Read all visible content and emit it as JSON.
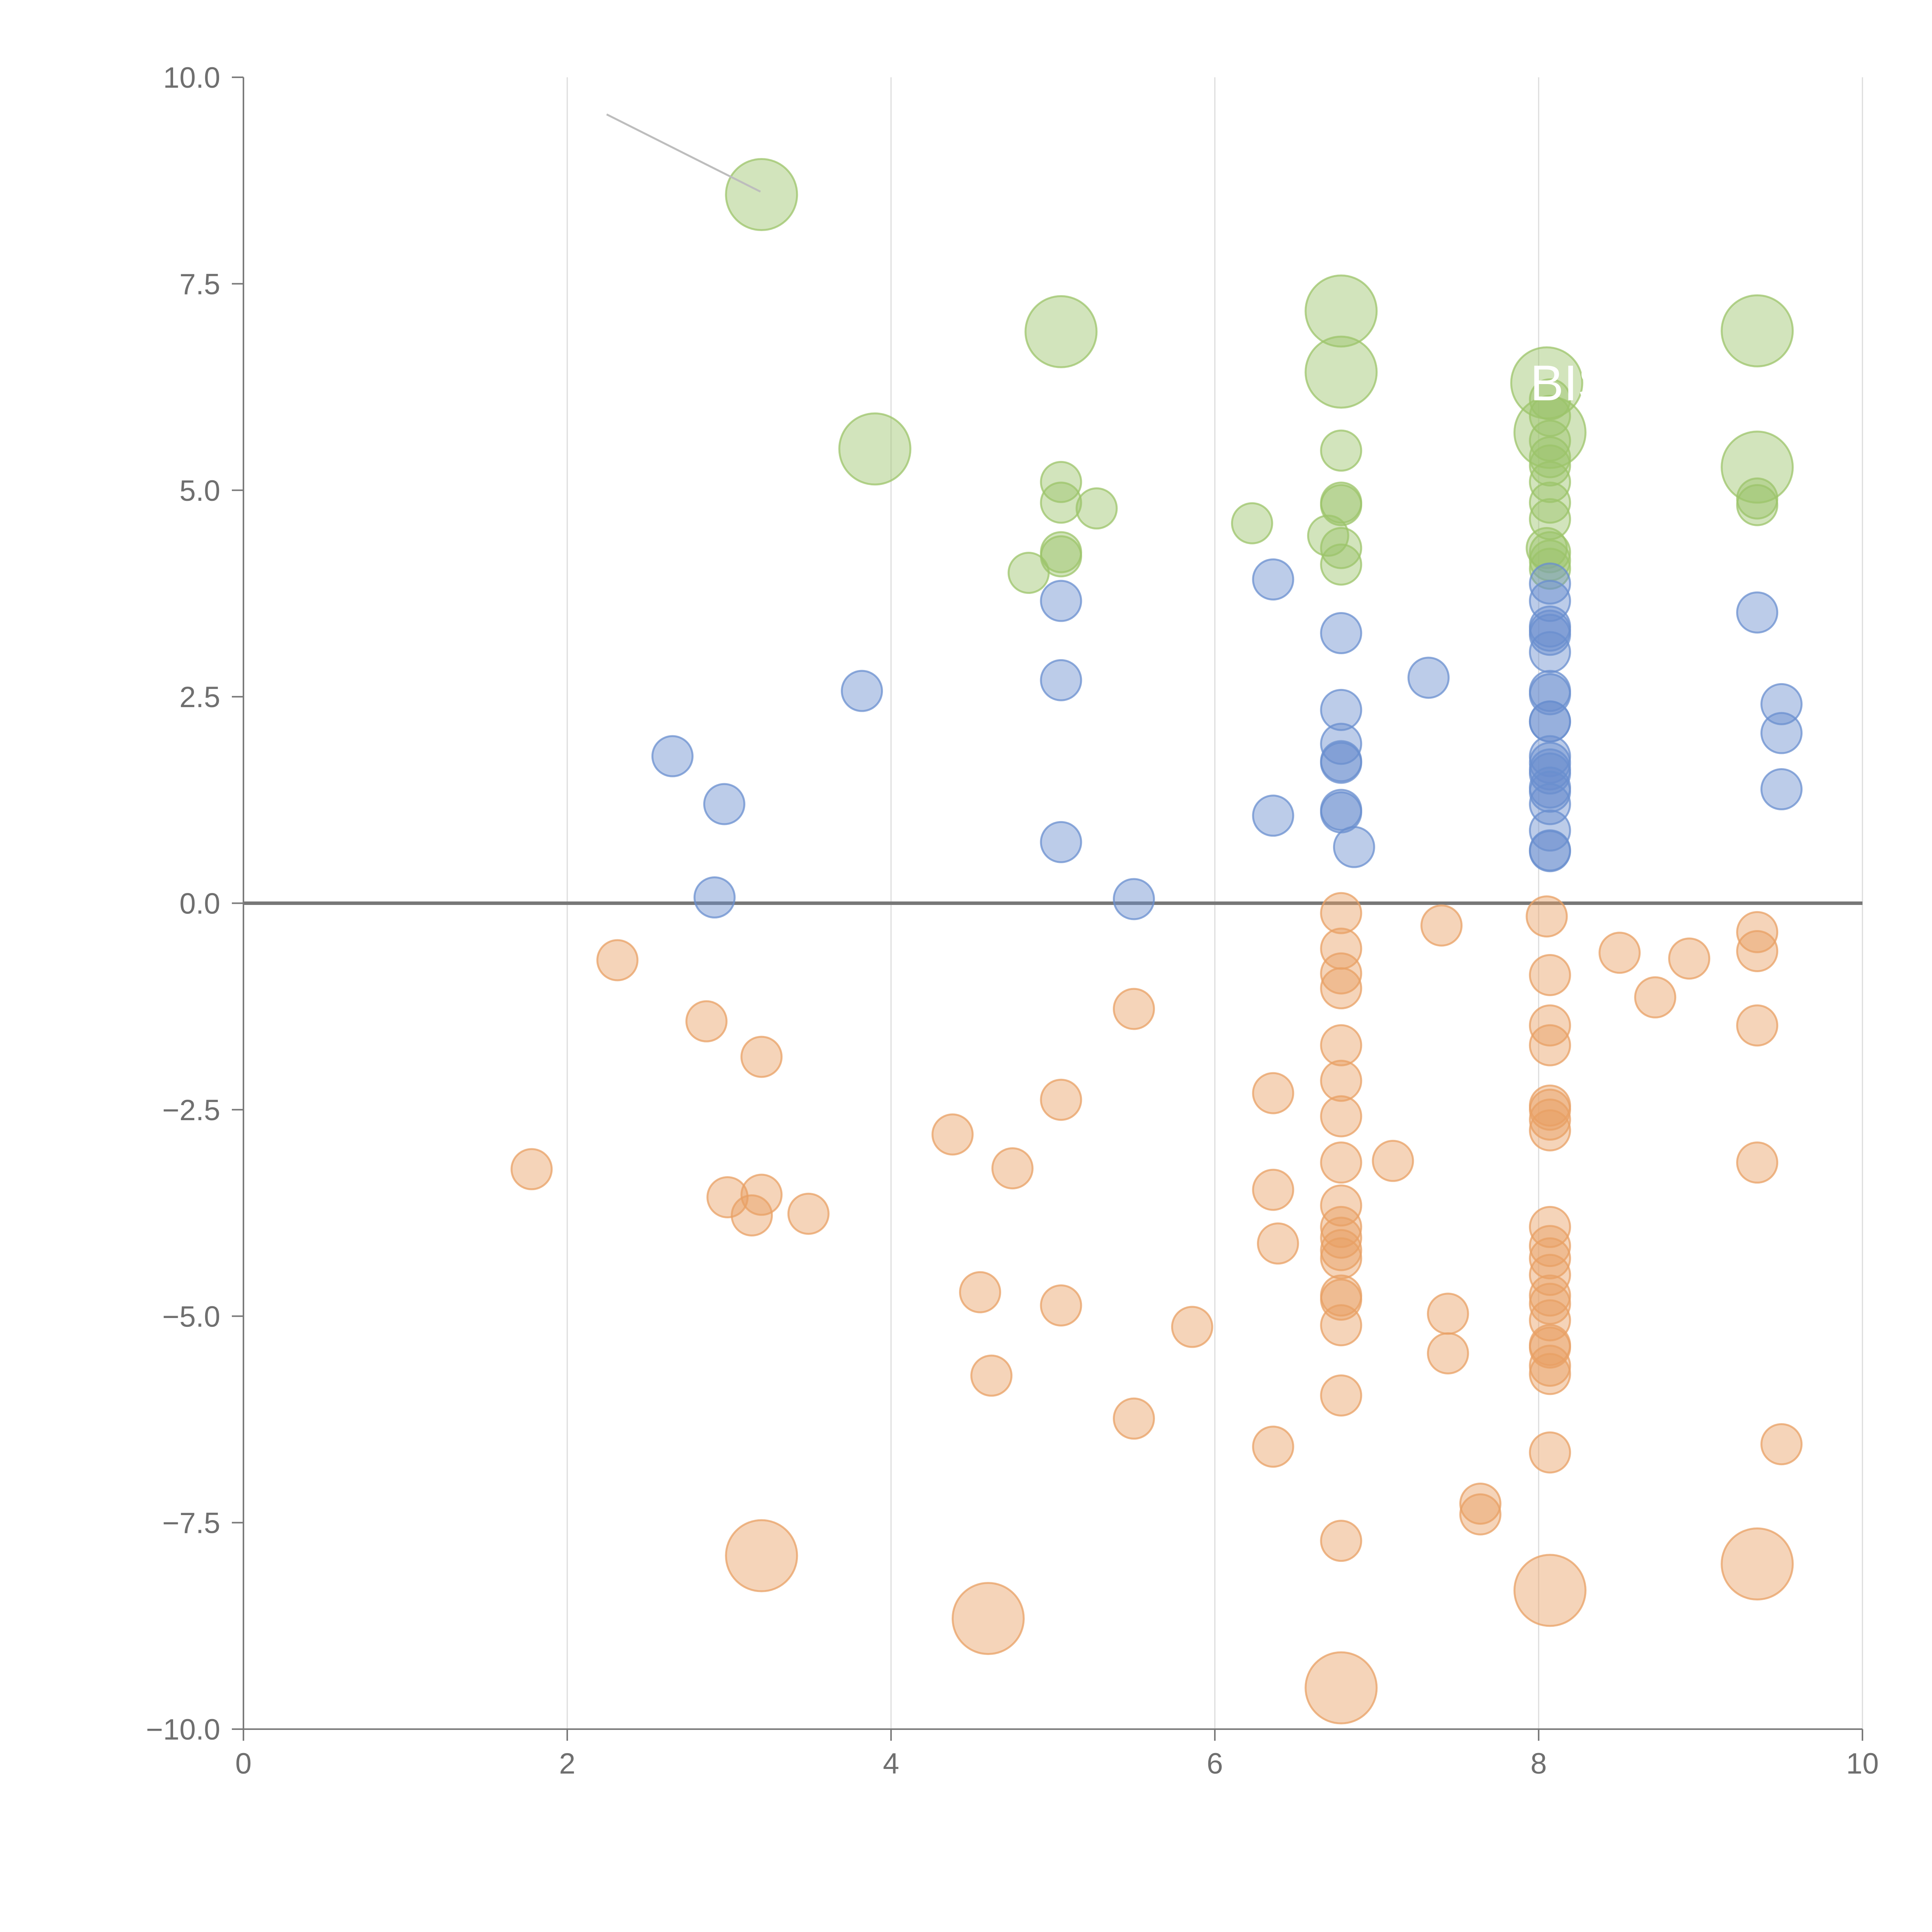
{
  "chart_data": {
    "type": "scatter",
    "title": "",
    "xlabel": "",
    "ylabel": "",
    "xlim": [
      0,
      10
    ],
    "ylim": [
      -10,
      10
    ],
    "x_ticks": [
      "0",
      "2",
      "4",
      "6",
      "8",
      "10"
    ],
    "y_ticks": [
      "−10.0",
      "−7.5",
      "−5.0",
      "−2.5",
      "0.0",
      "2.5",
      "5.0",
      "7.5",
      "10.0"
    ],
    "grid": "vertical",
    "zero_line": 0,
    "colors": {
      "green": "#9cc46a",
      "blue": "#6a8fcf",
      "orange": "#e8a064"
    },
    "annotation_labels": [
      "BIS"
    ],
    "series": [
      {
        "name": "green",
        "color": "#9cc46a",
        "points": [
          [
            5.05,
            5.1
          ],
          [
            5.05,
            4.85
          ],
          [
            5.05,
            4.25
          ],
          [
            5.05,
            4.2
          ],
          [
            4.85,
            4.0
          ],
          [
            5.27,
            4.78
          ],
          [
            6.23,
            4.6
          ],
          [
            6.78,
            5.48
          ],
          [
            6.78,
            4.85
          ],
          [
            6.78,
            4.82
          ],
          [
            6.7,
            4.45
          ],
          [
            6.78,
            4.3
          ],
          [
            6.78,
            4.1
          ],
          [
            8.07,
            6.1
          ],
          [
            8.07,
            5.9
          ],
          [
            8.07,
            5.6
          ],
          [
            8.07,
            5.4
          ],
          [
            8.07,
            5.3
          ],
          [
            8.07,
            5.1
          ],
          [
            8.07,
            4.85
          ],
          [
            8.07,
            4.65
          ],
          [
            8.05,
            4.3
          ],
          [
            8.07,
            4.25
          ],
          [
            8.07,
            4.15
          ],
          [
            8.07,
            4.05
          ],
          [
            9.35,
            4.9
          ],
          [
            9.35,
            4.82
          ]
        ]
      },
      {
        "name": "blue",
        "color": "#6a8fcf",
        "points": [
          [
            2.65,
            1.78
          ],
          [
            2.97,
            1.2
          ],
          [
            2.91,
            0.07
          ],
          [
            3.82,
            2.57
          ],
          [
            5.05,
            3.66
          ],
          [
            5.05,
            2.7
          ],
          [
            5.05,
            0.74
          ],
          [
            5.5,
            0.05
          ],
          [
            6.36,
            3.92
          ],
          [
            6.36,
            1.06
          ],
          [
            6.78,
            3.27
          ],
          [
            6.78,
            2.34
          ],
          [
            6.78,
            1.93
          ],
          [
            6.78,
            1.72
          ],
          [
            6.78,
            1.7
          ],
          [
            6.78,
            1.13
          ],
          [
            6.78,
            1.1
          ],
          [
            6.86,
            0.68
          ],
          [
            7.32,
            2.73
          ],
          [
            8.07,
            3.87
          ],
          [
            8.07,
            3.66
          ],
          [
            8.07,
            3.35
          ],
          [
            8.07,
            3.3
          ],
          [
            8.07,
            3.25
          ],
          [
            8.07,
            3.04
          ],
          [
            8.07,
            2.57
          ],
          [
            8.07,
            2.53
          ],
          [
            8.07,
            2.2
          ],
          [
            8.07,
            2.2
          ],
          [
            8.07,
            1.78
          ],
          [
            8.07,
            1.7
          ],
          [
            8.07,
            1.62
          ],
          [
            8.07,
            1.57
          ],
          [
            8.07,
            1.4
          ],
          [
            8.07,
            1.35
          ],
          [
            8.07,
            1.2
          ],
          [
            8.07,
            0.88
          ],
          [
            8.07,
            0.64
          ],
          [
            8.07,
            0.63
          ],
          [
            9.35,
            3.52
          ],
          [
            9.5,
            2.41
          ],
          [
            9.5,
            2.06
          ],
          [
            9.5,
            1.38
          ]
        ]
      },
      {
        "name": "orange",
        "color": "#e8a064",
        "points": [
          [
            1.78,
            -3.22
          ],
          [
            2.31,
            -0.69
          ],
          [
            2.86,
            -1.43
          ],
          [
            3.2,
            -1.86
          ],
          [
            2.99,
            -3.56
          ],
          [
            3.2,
            -3.53
          ],
          [
            3.14,
            -3.78
          ],
          [
            3.49,
            -3.76
          ],
          [
            4.38,
            -2.8
          ],
          [
            4.75,
            -3.21
          ],
          [
            4.55,
            -4.71
          ],
          [
            4.62,
            -5.72
          ],
          [
            5.05,
            -2.38
          ],
          [
            5.05,
            -4.87
          ],
          [
            5.5,
            -1.28
          ],
          [
            5.5,
            -6.24
          ],
          [
            5.86,
            -5.13
          ],
          [
            6.36,
            -2.3
          ],
          [
            6.36,
            -3.47
          ],
          [
            6.39,
            -4.12
          ],
          [
            6.36,
            -6.58
          ],
          [
            6.78,
            -0.12
          ],
          [
            6.78,
            -0.55
          ],
          [
            6.78,
            -0.85
          ],
          [
            6.78,
            -1.03
          ],
          [
            6.78,
            -1.72
          ],
          [
            6.78,
            -2.15
          ],
          [
            6.78,
            -2.58
          ],
          [
            6.78,
            -3.14
          ],
          [
            6.78,
            -3.66
          ],
          [
            6.78,
            -3.92
          ],
          [
            6.78,
            -4.05
          ],
          [
            6.78,
            -4.2
          ],
          [
            6.78,
            -4.3
          ],
          [
            6.78,
            -4.75
          ],
          [
            6.78,
            -4.8
          ],
          [
            6.78,
            -5.11
          ],
          [
            6.78,
            -5.96
          ],
          [
            6.78,
            -7.72
          ],
          [
            7.1,
            -3.12
          ],
          [
            7.4,
            -0.27
          ],
          [
            7.44,
            -4.97
          ],
          [
            7.44,
            -5.45
          ],
          [
            7.64,
            -7.27
          ],
          [
            7.64,
            -7.4
          ],
          [
            8.05,
            -0.16
          ],
          [
            8.07,
            -0.87
          ],
          [
            8.07,
            -1.48
          ],
          [
            8.07,
            -1.72
          ],
          [
            8.07,
            -2.45
          ],
          [
            8.07,
            -2.5
          ],
          [
            8.07,
            -2.62
          ],
          [
            8.07,
            -2.75
          ],
          [
            8.07,
            -3.92
          ],
          [
            8.07,
            -4.15
          ],
          [
            8.07,
            -4.3
          ],
          [
            8.07,
            -4.5
          ],
          [
            8.07,
            -4.75
          ],
          [
            8.07,
            -4.85
          ],
          [
            8.07,
            -5.05
          ],
          [
            8.07,
            -5.35
          ],
          [
            8.07,
            -5.38
          ],
          [
            8.07,
            -5.6
          ],
          [
            8.07,
            -5.7
          ],
          [
            8.07,
            -6.65
          ],
          [
            8.5,
            -0.6
          ],
          [
            8.72,
            -1.14
          ],
          [
            8.93,
            -0.67
          ],
          [
            9.35,
            -0.35
          ],
          [
            9.35,
            -0.58
          ],
          [
            9.35,
            -1.48
          ],
          [
            9.35,
            -3.14
          ],
          [
            9.5,
            -6.55
          ]
        ]
      }
    ],
    "highlighted": [
      {
        "series": "green",
        "x": 3.2,
        "y": 8.58
      },
      {
        "series": "green",
        "x": 3.9,
        "y": 5.5
      },
      {
        "series": "green",
        "x": 5.05,
        "y": 6.92
      },
      {
        "series": "green",
        "x": 6.78,
        "y": 7.17
      },
      {
        "series": "green",
        "x": 6.78,
        "y": 6.43
      },
      {
        "series": "green",
        "x": 8.05,
        "y": 6.3
      },
      {
        "series": "green",
        "x": 8.07,
        "y": 5.7
      },
      {
        "series": "green",
        "x": 9.35,
        "y": 6.93
      },
      {
        "series": "green",
        "x": 9.35,
        "y": 5.28
      },
      {
        "series": "orange",
        "x": 3.2,
        "y": -7.9
      },
      {
        "series": "orange",
        "x": 4.6,
        "y": -8.66
      },
      {
        "series": "orange",
        "x": 6.78,
        "y": -9.5
      },
      {
        "series": "orange",
        "x": 8.07,
        "y": -8.32
      },
      {
        "series": "orange",
        "x": 9.35,
        "y": -8.0
      }
    ]
  }
}
